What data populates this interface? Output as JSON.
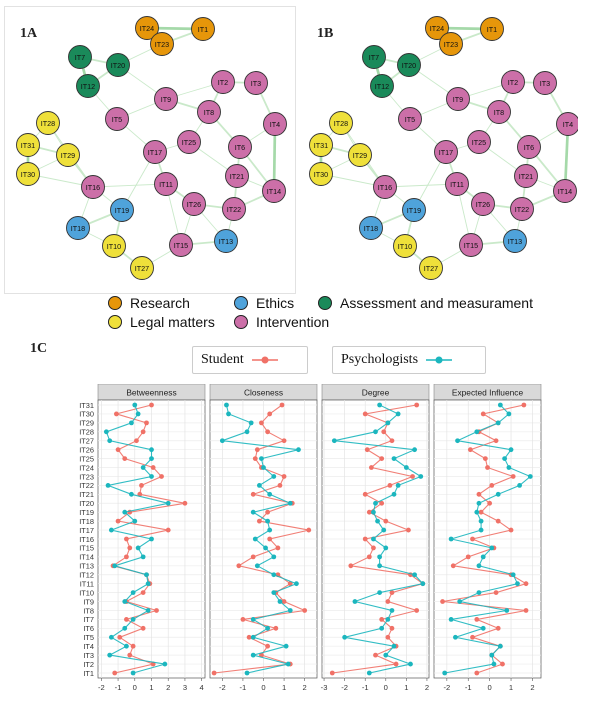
{
  "panels": {
    "network_a_label": "1A",
    "network_b_label": "1B",
    "centrality_label": "1C"
  },
  "group_legend": [
    {
      "label": "Research",
      "color": "#E6960A"
    },
    {
      "label": "Ethics",
      "color": "#4FA3DB"
    },
    {
      "label": "Assessment and measurament",
      "color": "#1A8A5A"
    },
    {
      "label": "Legal matters",
      "color": "#EFE03A"
    },
    {
      "label": "Intervention",
      "color": "#CC6FA8"
    }
  ],
  "series_legend": [
    {
      "label": "Student",
      "color": "#F07167"
    },
    {
      "label": "Psychologists",
      "color": "#1BB6BE"
    }
  ],
  "networks": [
    {
      "name": "1A",
      "nodes": [
        {
          "id": "IT24",
          "group": "Research"
        },
        {
          "id": "IT1",
          "group": "Research"
        },
        {
          "id": "IT23",
          "group": "Research"
        },
        {
          "id": "IT7",
          "group": "Assessment and measurament"
        },
        {
          "id": "IT20",
          "group": "Assessment and measurament"
        },
        {
          "id": "IT12",
          "group": "Assessment and measurament"
        },
        {
          "id": "IT2",
          "group": "Intervention"
        },
        {
          "id": "IT3",
          "group": "Intervention"
        },
        {
          "id": "IT9",
          "group": "Intervention"
        },
        {
          "id": "IT8",
          "group": "Intervention"
        },
        {
          "id": "IT28",
          "group": "Legal matters"
        },
        {
          "id": "IT5",
          "group": "Intervention"
        },
        {
          "id": "IT4",
          "group": "Intervention"
        },
        {
          "id": "IT25",
          "group": "Intervention"
        },
        {
          "id": "IT6",
          "group": "Intervention"
        },
        {
          "id": "IT31",
          "group": "Legal matters"
        },
        {
          "id": "IT17",
          "group": "Intervention"
        },
        {
          "id": "IT29",
          "group": "Legal matters"
        },
        {
          "id": "IT30",
          "group": "Legal matters"
        },
        {
          "id": "IT16",
          "group": "Intervention"
        },
        {
          "id": "IT11",
          "group": "Intervention"
        },
        {
          "id": "IT21",
          "group": "Intervention"
        },
        {
          "id": "IT14",
          "group": "Intervention"
        },
        {
          "id": "IT19",
          "group": "Ethics"
        },
        {
          "id": "IT26",
          "group": "Intervention"
        },
        {
          "id": "IT22",
          "group": "Intervention"
        },
        {
          "id": "IT18",
          "group": "Ethics"
        },
        {
          "id": "IT10",
          "group": "Legal matters"
        },
        {
          "id": "IT15",
          "group": "Intervention"
        },
        {
          "id": "IT13",
          "group": "Ethics"
        },
        {
          "id": "IT27",
          "group": "Legal matters"
        }
      ]
    },
    {
      "name": "1B",
      "nodes": [
        {
          "id": "IT24",
          "group": "Research"
        },
        {
          "id": "IT1",
          "group": "Research"
        },
        {
          "id": "IT23",
          "group": "Research"
        },
        {
          "id": "IT7",
          "group": "Assessment and measurament"
        },
        {
          "id": "IT20",
          "group": "Assessment and measurament"
        },
        {
          "id": "IT12",
          "group": "Assessment and measurament"
        },
        {
          "id": "IT2",
          "group": "Intervention"
        },
        {
          "id": "IT3",
          "group": "Intervention"
        },
        {
          "id": "IT9",
          "group": "Intervention"
        },
        {
          "id": "IT8",
          "group": "Intervention"
        },
        {
          "id": "IT28",
          "group": "Legal matters"
        },
        {
          "id": "IT5",
          "group": "Intervention"
        },
        {
          "id": "IT4",
          "group": "Intervention"
        },
        {
          "id": "IT25",
          "group": "Intervention"
        },
        {
          "id": "IT6",
          "group": "Intervention"
        },
        {
          "id": "IT31",
          "group": "Legal matters"
        },
        {
          "id": "IT17",
          "group": "Intervention"
        },
        {
          "id": "IT29",
          "group": "Legal matters"
        },
        {
          "id": "IT30",
          "group": "Legal matters"
        },
        {
          "id": "IT16",
          "group": "Intervention"
        },
        {
          "id": "IT11",
          "group": "Intervention"
        },
        {
          "id": "IT21",
          "group": "Intervention"
        },
        {
          "id": "IT14",
          "group": "Intervention"
        },
        {
          "id": "IT19",
          "group": "Ethics"
        },
        {
          "id": "IT26",
          "group": "Intervention"
        },
        {
          "id": "IT22",
          "group": "Intervention"
        },
        {
          "id": "IT18",
          "group": "Ethics"
        },
        {
          "id": "IT10",
          "group": "Legal matters"
        },
        {
          "id": "IT15",
          "group": "Intervention"
        },
        {
          "id": "IT13",
          "group": "Ethics"
        },
        {
          "id": "IT27",
          "group": "Legal matters"
        }
      ]
    }
  ],
  "chart_data": {
    "type": "line",
    "facets": [
      "Betweenness",
      "Closeness",
      "Degree",
      "Expected Influence"
    ],
    "categories": [
      "IT1",
      "IT2",
      "IT3",
      "IT4",
      "IT5",
      "IT6",
      "IT7",
      "IT8",
      "IT9",
      "IT10",
      "IT11",
      "IT12",
      "IT13",
      "IT14",
      "IT15",
      "IT16",
      "IT17",
      "IT18",
      "IT19",
      "IT20",
      "IT21",
      "IT22",
      "IT23",
      "IT24",
      "IT25",
      "IT26",
      "IT27",
      "IT28",
      "IT29",
      "IT30",
      "IT31"
    ],
    "x_ticks": [
      [
        -2,
        -1,
        0,
        1,
        2,
        3,
        4
      ],
      [
        -2,
        -1,
        0,
        1,
        2
      ],
      [
        -3,
        -2,
        -1,
        0,
        1,
        2
      ],
      [
        -2,
        -1,
        0,
        1,
        2
      ]
    ],
    "xlim": [
      [
        -2.2,
        4.2
      ],
      [
        -2.6,
        2.6
      ],
      [
        -3.1,
        2.1
      ],
      [
        -2.6,
        2.4
      ]
    ],
    "grid": true,
    "series": [
      {
        "name": "Student",
        "facet_values": [
          [
            -1.2,
            1.1,
            -0.3,
            -0.1,
            -0.9,
            0.5,
            -0.5,
            1.3,
            -0.5,
            0.5,
            0.9,
            0.7,
            -1.3,
            -0.5,
            -0.3,
            -0.5,
            2.0,
            -1.0,
            -0.3,
            3.0,
            0.3,
            0.4,
            1.6,
            1.1,
            -0.6,
            -1.0,
            0.1,
            0.5,
            0.7,
            -1.1,
            1.0
          ],
          [
            -2.4,
            1.3,
            -0.1,
            0.2,
            -0.7,
            0.6,
            -1.0,
            2.0,
            1.0,
            0.6,
            1.3,
            0.7,
            -1.2,
            -0.5,
            0.7,
            0.3,
            2.2,
            -0.2,
            0.2,
            1.4,
            -0.5,
            0.8,
            1.0,
            -0.1,
            -0.4,
            -0.3,
            1.0,
            0.2,
            -0.1,
            0.3,
            0.9
          ],
          [
            -2.6,
            0.5,
            -0.5,
            0.5,
            0.1,
            0.3,
            -0.2,
            1.5,
            0.1,
            0.3,
            1.8,
            1.2,
            -1.7,
            -0.8,
            -0.6,
            -1.0,
            1.1,
            0.0,
            -0.8,
            -0.2,
            -1.0,
            0.2,
            1.3,
            -0.7,
            -0.2,
            -0.9,
            0.3,
            -0.1,
            0.1,
            -1.0,
            1.5
          ],
          [
            -0.6,
            0.6,
            0.1,
            0.5,
            -0.8,
            0.4,
            -0.6,
            1.7,
            -2.2,
            0.3,
            1.7,
            1.0,
            -1.7,
            -1.0,
            0.2,
            -0.8,
            1.0,
            0.4,
            -0.4,
            0.0,
            -0.5,
            0.1,
            1.1,
            -0.1,
            -0.2,
            -0.9,
            0.3,
            -0.5,
            0.4,
            -0.3,
            1.6
          ]
        ]
      },
      {
        "name": "Psychologists",
        "facet_values": [
          [
            -0.1,
            1.8,
            -1.5,
            -0.5,
            -1.4,
            -0.6,
            -0.1,
            0.8,
            -0.6,
            -0.1,
            0.8,
            0.7,
            -1.2,
            0.5,
            0.2,
            1.0,
            -1.4,
            0.0,
            -0.6,
            2.0,
            -0.2,
            -1.6,
            1.0,
            0.5,
            1.0,
            1.0,
            -1.5,
            -1.7,
            -0.2,
            0.2,
            0.0
          ],
          [
            -0.8,
            1.2,
            -0.5,
            1.1,
            -0.5,
            0.2,
            -0.5,
            1.3,
            0.8,
            0.5,
            1.6,
            0.5,
            -0.3,
            0.5,
            0.1,
            -0.4,
            0.3,
            0.2,
            -0.5,
            1.3,
            0.3,
            -0.2,
            0.5,
            0.0,
            -0.1,
            1.7,
            -2.0,
            -0.8,
            -0.6,
            -1.7,
            -1.8
          ],
          [
            -0.8,
            1.2,
            0.0,
            0.4,
            -2.0,
            -0.2,
            0.1,
            0.3,
            -1.5,
            -0.3,
            1.8,
            1.4,
            -0.3,
            -0.3,
            0.0,
            -0.6,
            -0.1,
            -0.4,
            -0.6,
            -0.5,
            0.4,
            0.6,
            1.7,
            1.0,
            0.4,
            1.4,
            -2.5,
            -0.5,
            0.1,
            0.6,
            -0.3
          ],
          [
            -2.1,
            0.2,
            0.1,
            0.5,
            -1.6,
            -0.3,
            -1.8,
            0.8,
            -1.4,
            -0.5,
            1.3,
            1.1,
            -0.5,
            -0.3,
            0.1,
            -1.8,
            -0.4,
            -0.4,
            -0.6,
            -0.5,
            0.4,
            1.4,
            1.9,
            0.9,
            0.7,
            1.0,
            -1.5,
            -0.6,
            0.4,
            0.9,
            0.5
          ]
        ]
      }
    ]
  }
}
